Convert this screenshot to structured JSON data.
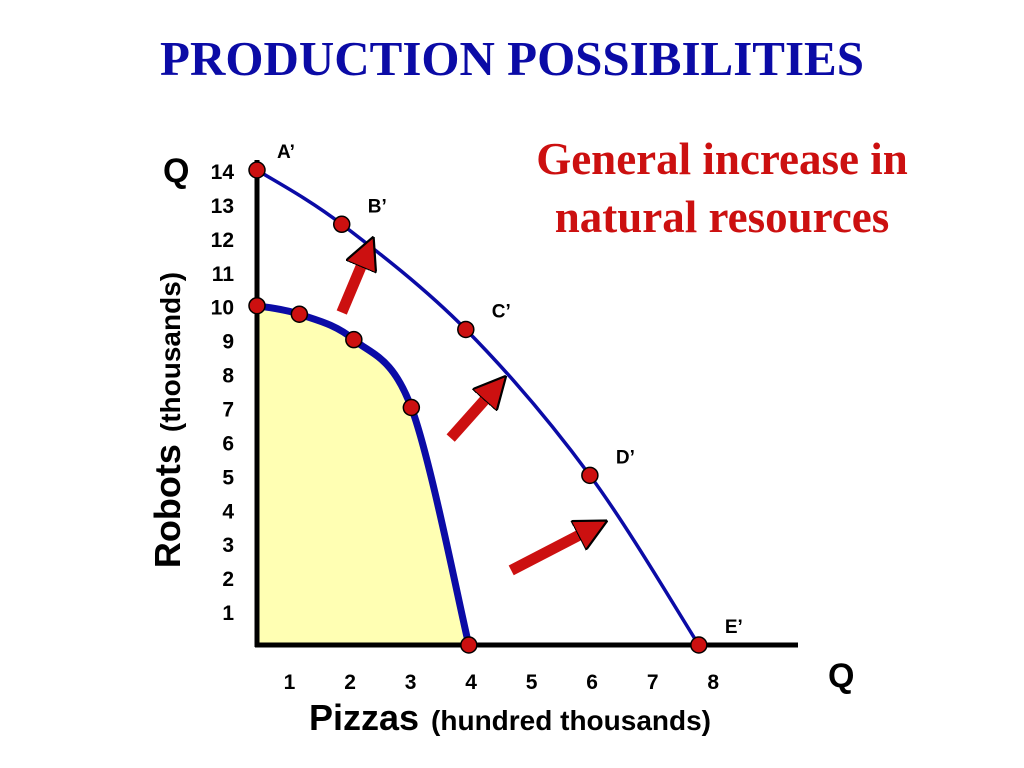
{
  "chart_data": {
    "type": "line",
    "title": "PRODUCTION POSSIBILITIES",
    "subtitle_lines": [
      "General increase in",
      "natural resources"
    ],
    "xlabel": "Pizzas",
    "xlabel_unit": "(hundred thousands)",
    "ylabel": "Robots",
    "ylabel_unit": "(thousands)",
    "x_axis_q": "Q",
    "y_axis_q": "Q",
    "xlim": [
      0,
      8
    ],
    "ylim": [
      0,
      14
    ],
    "x_ticks": [
      "1",
      "2",
      "3",
      "4",
      "5",
      "6",
      "7",
      "8"
    ],
    "y_ticks": [
      "1",
      "2",
      "3",
      "4",
      "5",
      "6",
      "7",
      "8",
      "9",
      "10",
      "11",
      "12",
      "13",
      "14"
    ],
    "grid": false,
    "series": [
      {
        "points": [
          {
            "x": 0,
            "y": 10
          },
          {
            "x": 0.7,
            "y": 9.75
          },
          {
            "x": 1.6,
            "y": 9
          },
          {
            "x": 2.55,
            "y": 7
          },
          {
            "x": 3.5,
            "y": 0
          }
        ],
        "fill": "#ffffb3",
        "color": "#0b0ba6"
      },
      {
        "points": [
          {
            "x": 0,
            "y": 14,
            "label": "A’"
          },
          {
            "x": 1.4,
            "y": 12.4,
            "label": "B’"
          },
          {
            "x": 3.45,
            "y": 9.3,
            "label": "C’"
          },
          {
            "x": 5.5,
            "y": 5,
            "label": "D’"
          },
          {
            "x": 7.3,
            "y": 0,
            "label": "E’"
          }
        ],
        "color": "#0b0ba6"
      }
    ],
    "annotations": [
      {
        "type": "arrow",
        "from": [
          1.4,
          9.8
        ],
        "to": [
          1.8,
          11.5
        ]
      },
      {
        "type": "arrow",
        "from": [
          3.2,
          6.1
        ],
        "to": [
          3.9,
          7.5
        ]
      },
      {
        "type": "arrow",
        "from": [
          4.2,
          2.2
        ],
        "to": [
          5.5,
          3.4
        ]
      }
    ],
    "colors": {
      "point": "#cc1010",
      "arrow": "#cc1010",
      "axis": "#000000"
    }
  }
}
